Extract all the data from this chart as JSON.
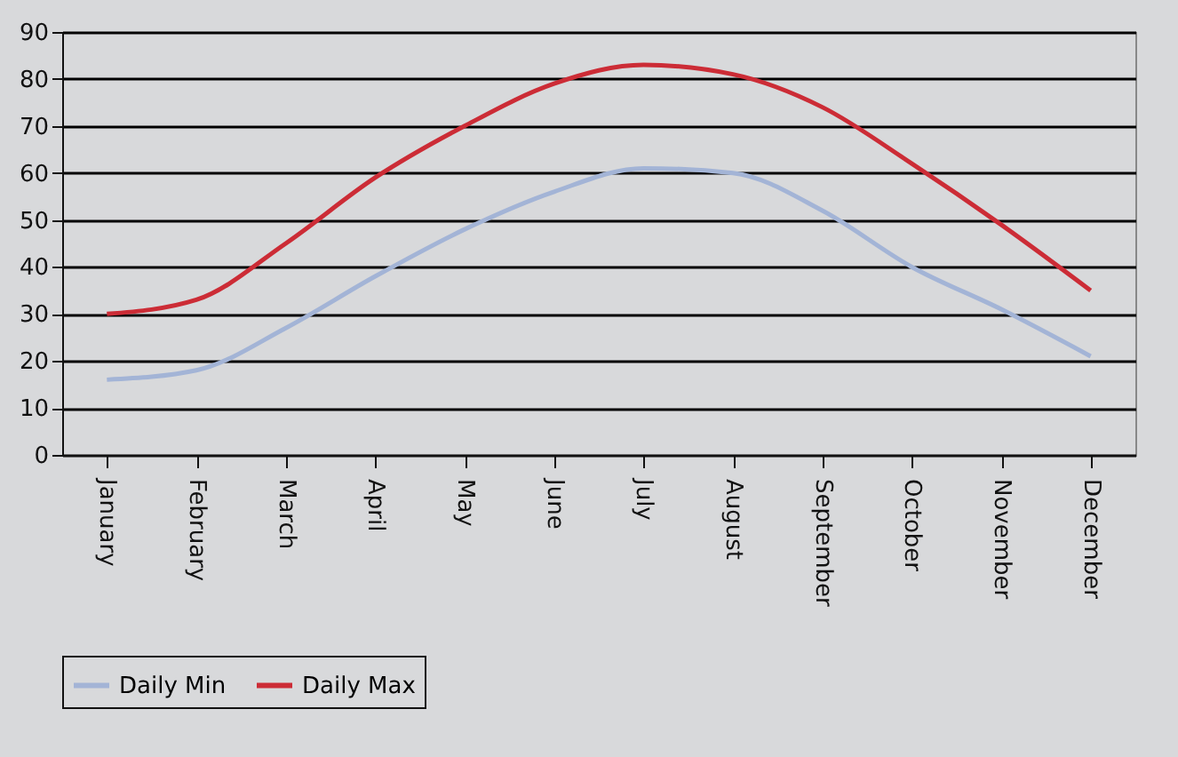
{
  "chart_data": {
    "type": "line",
    "categories": [
      "January",
      "February",
      "March",
      "April",
      "May",
      "June",
      "July",
      "August",
      "September",
      "October",
      "November",
      "December"
    ],
    "series": [
      {
        "name": "Daily Min",
        "color": "#a3b4d6",
        "values": [
          16,
          18,
          27,
          38,
          48,
          56,
          61,
          60,
          52,
          40,
          31,
          21
        ]
      },
      {
        "name": "Daily Max",
        "color": "#cc2c36",
        "values": [
          30,
          33,
          45,
          59,
          70,
          79,
          83,
          81,
          74,
          62,
          49,
          35
        ]
      }
    ],
    "ylim": [
      0,
      90
    ],
    "yticks": [
      0,
      10,
      20,
      30,
      40,
      50,
      60,
      70,
      80,
      90
    ],
    "grid": "y",
    "legend": "bottom",
    "marker": "none",
    "line_style": "solid"
  }
}
